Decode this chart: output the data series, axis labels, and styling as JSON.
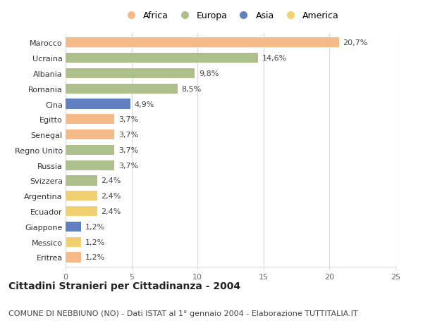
{
  "countries": [
    "Marocco",
    "Ucraina",
    "Albania",
    "Romania",
    "Cina",
    "Egitto",
    "Senegal",
    "Regno Unito",
    "Russia",
    "Svizzera",
    "Argentina",
    "Ecuador",
    "Giappone",
    "Messico",
    "Eritrea"
  ],
  "values": [
    20.7,
    14.6,
    9.8,
    8.5,
    4.9,
    3.7,
    3.7,
    3.7,
    3.7,
    2.4,
    2.4,
    2.4,
    1.2,
    1.2,
    1.2
  ],
  "labels": [
    "20,7%",
    "14,6%",
    "9,8%",
    "8,5%",
    "4,9%",
    "3,7%",
    "3,7%",
    "3,7%",
    "3,7%",
    "2,4%",
    "2,4%",
    "2,4%",
    "1,2%",
    "1,2%",
    "1,2%"
  ],
  "continents": [
    "Africa",
    "Europa",
    "Europa",
    "Europa",
    "Asia",
    "Africa",
    "Africa",
    "Europa",
    "Europa",
    "Europa",
    "America",
    "America",
    "Asia",
    "America",
    "Africa"
  ],
  "colors": {
    "Africa": "#F5B98A",
    "Europa": "#ADBF8A",
    "Asia": "#6080C0",
    "America": "#F0D070"
  },
  "legend_order": [
    "Africa",
    "Europa",
    "Asia",
    "America"
  ],
  "xlim": [
    0,
    25
  ],
  "xticks": [
    0,
    5,
    10,
    15,
    20,
    25
  ],
  "title": "Cittadini Stranieri per Cittadinanza - 2004",
  "subtitle": "COMUNE DI NEBBIUNO (NO) - Dati ISTAT al 1° gennaio 2004 - Elaborazione TUTTITALIA.IT",
  "bg_color": "#ffffff",
  "grid_color": "#d8d8d8",
  "bar_height": 0.65,
  "title_fontsize": 10,
  "subtitle_fontsize": 8,
  "label_fontsize": 8,
  "tick_fontsize": 8,
  "legend_fontsize": 9
}
